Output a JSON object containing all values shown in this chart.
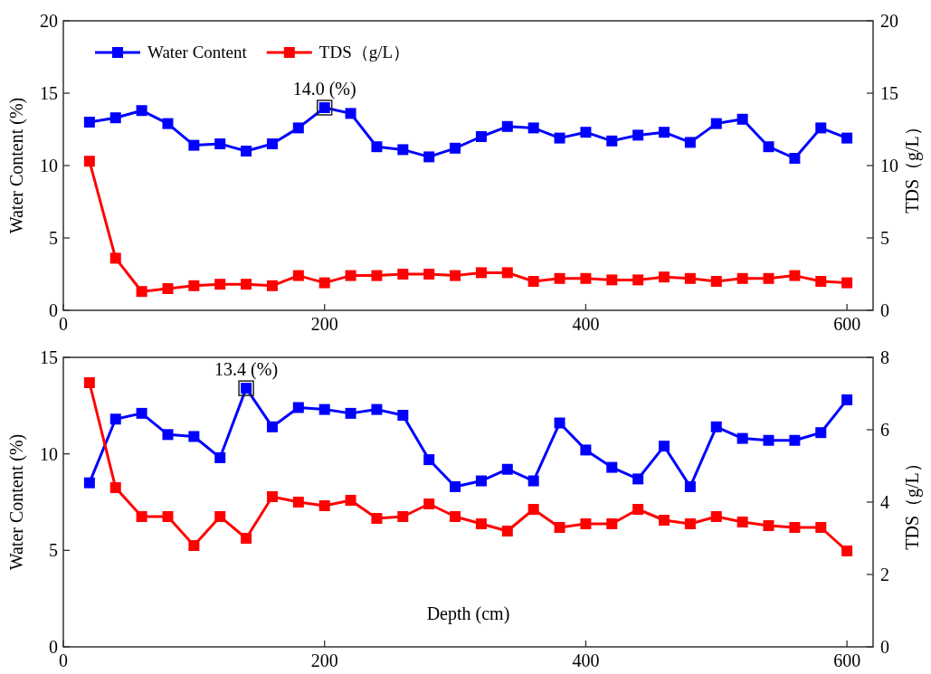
{
  "chart_data": [
    {
      "type": "line",
      "ylabel": "Water Content (%)",
      "y2label": "TDS（g/L）",
      "x": [
        20,
        40,
        60,
        80,
        100,
        120,
        140,
        160,
        180,
        200,
        220,
        240,
        260,
        280,
        300,
        320,
        340,
        360,
        380,
        400,
        420,
        440,
        460,
        480,
        500,
        520,
        540,
        560,
        580,
        600
      ],
      "series": [
        {
          "name": "Water Content",
          "color": "#0000ff",
          "values": [
            13.0,
            13.3,
            13.8,
            12.9,
            11.4,
            11.5,
            11.0,
            11.5,
            12.6,
            14.0,
            13.6,
            11.3,
            11.1,
            10.6,
            11.2,
            12.0,
            12.7,
            12.6,
            11.9,
            12.3,
            11.7,
            12.1,
            12.3,
            11.6,
            12.9,
            13.2,
            11.3,
            10.5,
            12.6,
            11.9
          ]
        },
        {
          "name": "TDS（g/L）",
          "color": "#ff0000",
          "axis": "y2",
          "values": [
            10.3,
            3.6,
            1.3,
            1.5,
            1.7,
            1.8,
            1.8,
            1.7,
            2.4,
            1.9,
            2.4,
            2.4,
            2.5,
            2.5,
            2.4,
            2.6,
            2.6,
            2.0,
            2.2,
            2.2,
            2.1,
            2.1,
            2.3,
            2.2,
            2.0,
            2.2,
            2.2,
            2.4,
            2.0,
            1.9
          ]
        }
      ],
      "annotations": [
        {
          "text": "14.0 (%)",
          "x": 200,
          "y": 14.0
        }
      ],
      "xlim": [
        0,
        620
      ],
      "xticks": [
        0,
        200,
        400,
        600
      ],
      "ylim": [
        0,
        20
      ],
      "yticks": [
        0,
        5,
        10,
        15,
        20
      ],
      "y2lim": [
        0,
        20
      ],
      "y2ticks": [
        0,
        5,
        10,
        15,
        20
      ],
      "marker": "square",
      "line_style": "solid",
      "legend": "top left",
      "grid": false
    },
    {
      "type": "line",
      "xlabel": "Depth (cm)",
      "ylabel": "Water Content (%)",
      "y2label": "TDS（g/L）",
      "x": [
        20,
        40,
        60,
        80,
        100,
        120,
        140,
        160,
        180,
        200,
        220,
        240,
        260,
        280,
        300,
        320,
        340,
        360,
        380,
        400,
        420,
        440,
        460,
        480,
        500,
        520,
        540,
        560,
        580,
        600
      ],
      "series": [
        {
          "color": "#0000ff",
          "values": [
            8.5,
            11.8,
            12.1,
            11.0,
            10.9,
            9.8,
            13.4,
            11.4,
            12.4,
            12.3,
            12.1,
            12.3,
            12.0,
            9.7,
            8.3,
            8.6,
            9.2,
            8.6,
            11.6,
            10.2,
            9.3,
            8.7,
            10.4,
            8.3,
            11.4,
            10.8,
            10.7,
            10.7,
            11.1,
            12.8
          ]
        },
        {
          "color": "#ff0000",
          "axis": "y2",
          "values": [
            7.3,
            4.4,
            3.6,
            3.6,
            2.8,
            3.6,
            3.0,
            4.15,
            4.0,
            3.9,
            4.05,
            3.55,
            3.6,
            3.95,
            3.6,
            3.4,
            3.2,
            3.8,
            3.3,
            3.4,
            3.4,
            3.8,
            3.5,
            3.4,
            3.6,
            3.45,
            3.35,
            3.3,
            3.3,
            2.65
          ]
        }
      ],
      "annotations": [
        {
          "text": "13.4 (%)",
          "x": 140,
          "y": 13.4
        }
      ],
      "xlim": [
        0,
        620
      ],
      "xticks": [
        0,
        200,
        400,
        600
      ],
      "ylim": [
        0,
        15
      ],
      "yticks": [
        0,
        5,
        10,
        15
      ],
      "y2lim": [
        0,
        8
      ],
      "y2ticks": [
        0,
        2,
        4,
        6,
        8
      ],
      "marker": "square",
      "line_style": "solid",
      "grid": false
    }
  ]
}
